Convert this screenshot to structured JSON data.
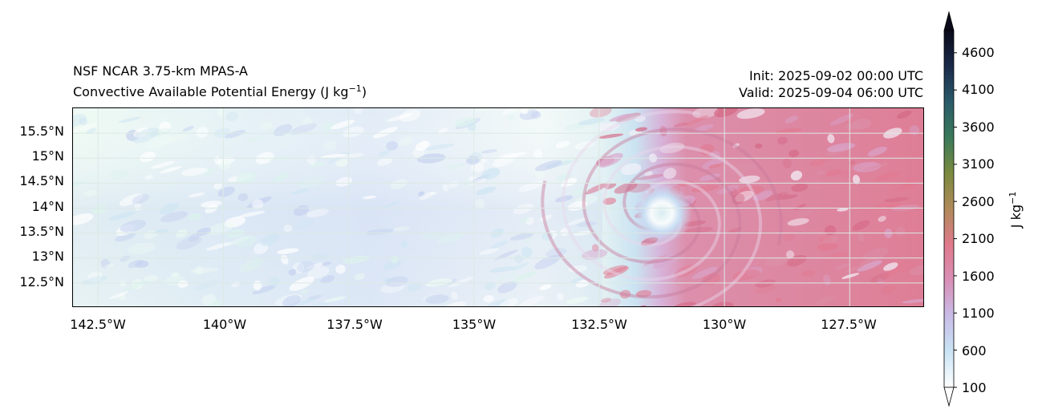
{
  "header": {
    "source": "NSF NCAR 3.75-km MPAS-A",
    "field_main": "Convective Available Potential Energy (J kg",
    "field_sup": "−1",
    "field_close": ")",
    "init": "Init: 2025-09-02 00:00 UTC",
    "valid": "Valid: 2025-09-04 06:00 UTC"
  },
  "axes": {
    "lat_labels": [
      "15.5°N",
      "15°N",
      "14.5°N",
      "14°N",
      "13.5°N",
      "13°N",
      "12.5°N"
    ],
    "lon_labels": [
      "142.5°W",
      "140°W",
      "137.5°W",
      "135°W",
      "132.5°W",
      "130°W",
      "127.5°W"
    ]
  },
  "colorbar": {
    "label_main": "J kg",
    "label_sup": "−1",
    "ticks": [
      "100",
      "600",
      "1100",
      "1600",
      "2100",
      "2600",
      "3100",
      "3600",
      "4100",
      "4600"
    ],
    "range": [
      100,
      4900
    ],
    "extend": "both",
    "colors": [
      "#ffffff",
      "#c9e4f4",
      "#c8bce8",
      "#d98fb6",
      "#e07a8c",
      "#b08a5a",
      "#7b8a3e",
      "#3a7a5a",
      "#2a5a6a",
      "#1a2a4a",
      "#0a0a1a"
    ]
  },
  "map_style": {
    "low_colors": [
      "#eefaf4",
      "#ddf3ee",
      "#cfe6f3",
      "#c6d2f0"
    ],
    "high_colors": [
      "#d9a8cf",
      "#dc8fa8",
      "#e17b92",
      "#d56a87"
    ],
    "gridline_color": "#dce9e4"
  },
  "cyclone_center": {
    "lon": -131.25,
    "lat": 13.9
  }
}
